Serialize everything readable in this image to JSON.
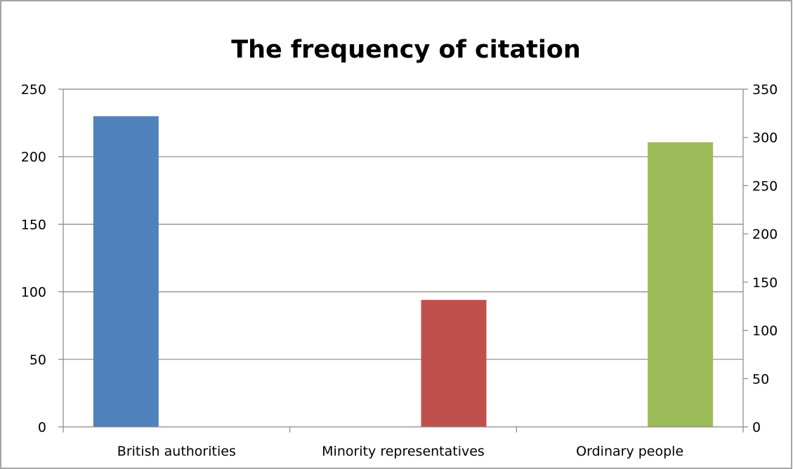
{
  "chart_data": {
    "type": "bar",
    "title": "The frequency of citation",
    "categories": [
      "British authorities",
      "Minority representatives",
      "Ordinary people"
    ],
    "bars": [
      {
        "category": "British authorities",
        "value": 230,
        "axis": "left",
        "color": "#4f81bd"
      },
      {
        "category": "Minority representatives",
        "value": 94,
        "axis": "left",
        "color": "#c0504d"
      },
      {
        "category": "Ordinary people",
        "value": 295,
        "axis": "right",
        "color": "#9bbb59"
      }
    ],
    "left_axis": {
      "min": 0,
      "max": 250,
      "ticks": [
        "0",
        "50",
        "100",
        "150",
        "200",
        "250"
      ]
    },
    "right_axis": {
      "min": 0,
      "max": 350,
      "ticks": [
        "0",
        "50",
        "100",
        "150",
        "200",
        "250",
        "300",
        "350"
      ]
    },
    "grid": true,
    "legend": "none"
  }
}
